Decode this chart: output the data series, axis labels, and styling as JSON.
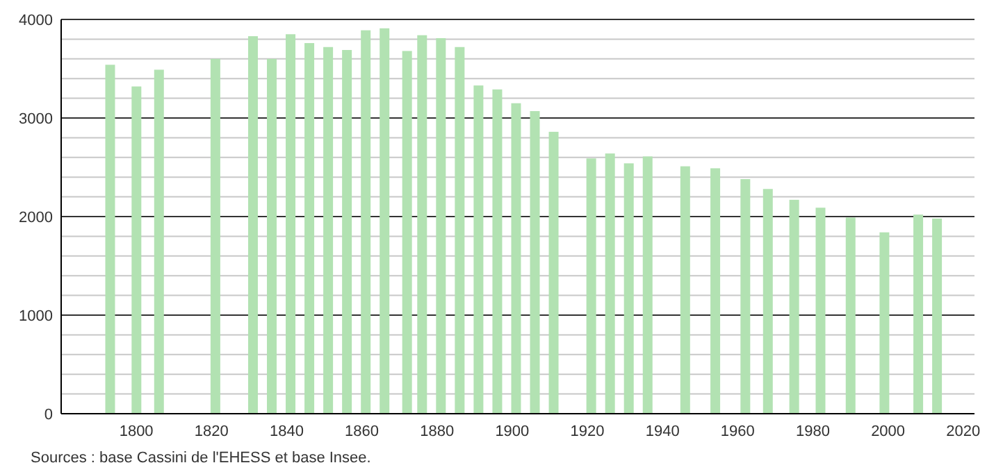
{
  "chart_data": {
    "type": "bar",
    "x": [
      1793,
      1800,
      1806,
      1821,
      1831,
      1836,
      1841,
      1846,
      1851,
      1856,
      1861,
      1866,
      1872,
      1876,
      1881,
      1886,
      1891,
      1896,
      1901,
      1906,
      1911,
      1921,
      1926,
      1931,
      1936,
      1946,
      1954,
      1962,
      1968,
      1975,
      1982,
      1990,
      1999,
      2008,
      2013
    ],
    "values": [
      3540,
      3320,
      3490,
      3600,
      3830,
      3600,
      3850,
      3760,
      3720,
      3690,
      3890,
      3910,
      3680,
      3840,
      3810,
      3720,
      3330,
      3290,
      3150,
      3070,
      2860,
      2590,
      2640,
      2540,
      2610,
      2510,
      2490,
      2380,
      2280,
      2170,
      2090,
      1990,
      1840,
      2020,
      1980
    ],
    "color": "#b2e2b2",
    "xlim": [
      1780,
      2023
    ],
    "xticks": [
      1800,
      1820,
      1840,
      1860,
      1880,
      1900,
      1920,
      1940,
      1960,
      1980,
      2000,
      2020
    ],
    "ylim": [
      0,
      4000
    ],
    "yticks": [
      0,
      {
        "value": 200,
        "label": null
      },
      {
        "value": 400,
        "label": null
      },
      {
        "value": 600,
        "label": null
      },
      {
        "value": 800,
        "label": null
      },
      1000,
      {
        "value": 1200,
        "label": null
      },
      {
        "value": 1400,
        "label": null
      },
      {
        "value": 1600,
        "label": null
      },
      {
        "value": 1800,
        "label": null
      },
      2000,
      {
        "value": 2200,
        "label": null
      },
      {
        "value": 2400,
        "label": null
      },
      {
        "value": 2600,
        "label": null
      },
      {
        "value": 2800,
        "label": null
      },
      3000,
      {
        "value": 3200,
        "label": null
      },
      {
        "value": 3400,
        "label": null
      },
      {
        "value": 3600,
        "label": null
      },
      {
        "value": 3800,
        "label": null
      },
      4000
    ],
    "grid": "y",
    "annotations": [
      "Sources : base Cassini de l'EHESS et base Insee."
    ]
  }
}
